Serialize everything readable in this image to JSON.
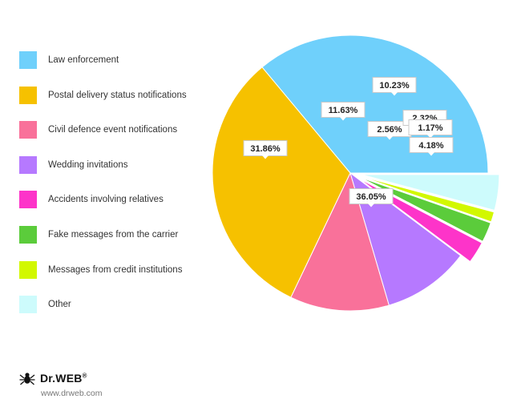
{
  "chart_data": {
    "type": "pie",
    "title": "",
    "legend_position": "left",
    "slices": [
      {
        "label": "Law enforcement",
        "value": 36.05,
        "display": "36.05%",
        "color": "#6fd0fb",
        "explode": false
      },
      {
        "label": "Postal delivery status notifications",
        "value": 31.86,
        "display": "31.86%",
        "color": "#f6c100",
        "explode": false
      },
      {
        "label": "Civil defence event notifications",
        "value": 11.63,
        "display": "11.63%",
        "color": "#f9719a",
        "explode": false
      },
      {
        "label": "Wedding invitations",
        "value": 10.23,
        "display": "10.23%",
        "color": "#b679ff",
        "explode": false
      },
      {
        "label": "Accidents involving relatives",
        "value": 2.56,
        "display": "2.56%",
        "color": "#fd34c9",
        "explode": true
      },
      {
        "label": "Fake messages from the carrier",
        "value": 2.32,
        "display": "2.32%",
        "color": "#5bcc3b",
        "explode": true
      },
      {
        "label": "Messages from credit institutions",
        "value": 1.17,
        "display": "1.17%",
        "color": "#d2f800",
        "explode": true
      },
      {
        "label": "Other",
        "value": 4.18,
        "display": "4.18%",
        "color": "#cdfbfc",
        "explode": true
      }
    ]
  },
  "brand": {
    "name": "Dr.WEB",
    "registered_mark": "®",
    "url": "www.drweb.com",
    "icon": "spider-logo-icon"
  }
}
